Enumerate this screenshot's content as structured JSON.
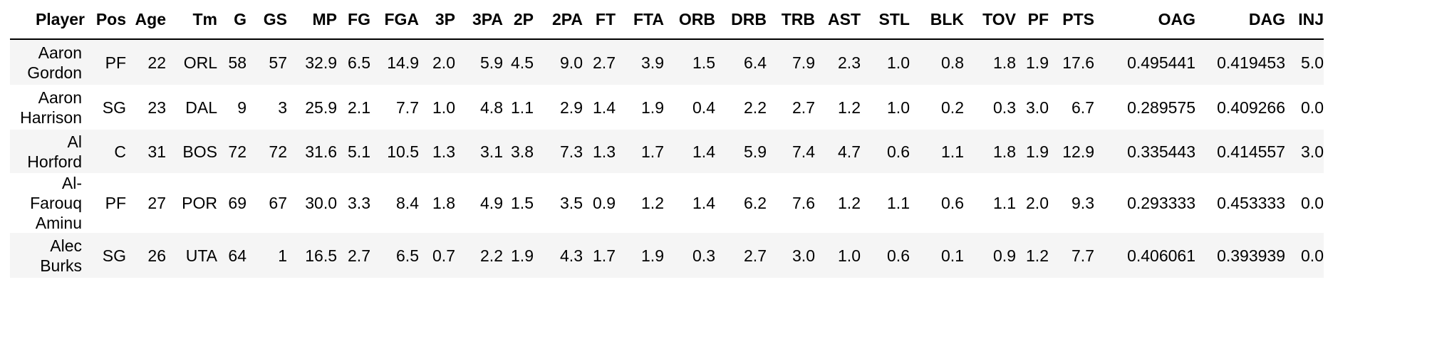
{
  "table": {
    "columns": [
      "Player",
      "Pos",
      "Age",
      "Tm",
      "G",
      "GS",
      "MP",
      "FG",
      "FGA",
      "3P",
      "3PA",
      "2P",
      "2PA",
      "FT",
      "FTA",
      "ORB",
      "DRB",
      "TRB",
      "AST",
      "STL",
      "BLK",
      "TOV",
      "PF",
      "PTS",
      "OAG",
      "DAG",
      "INJ"
    ],
    "rows": [
      {
        "player_lines": [
          "Aaron",
          "Gordon"
        ],
        "values": [
          "PF",
          "22",
          "ORL",
          "58",
          "57",
          "32.9",
          "6.5",
          "14.9",
          "2.0",
          "5.9",
          "4.5",
          "9.0",
          "2.7",
          "3.9",
          "1.5",
          "6.4",
          "7.9",
          "2.3",
          "1.0",
          "0.8",
          "1.8",
          "1.9",
          "17.6",
          "0.495441",
          "0.419453",
          "5.0"
        ]
      },
      {
        "player_lines": [
          "Aaron",
          "Harrison"
        ],
        "values": [
          "SG",
          "23",
          "DAL",
          "9",
          "3",
          "25.9",
          "2.1",
          "7.7",
          "1.0",
          "4.8",
          "1.1",
          "2.9",
          "1.4",
          "1.9",
          "0.4",
          "2.2",
          "2.7",
          "1.2",
          "1.0",
          "0.2",
          "0.3",
          "3.0",
          "6.7",
          "0.289575",
          "0.409266",
          "0.0"
        ]
      },
      {
        "player_lines": [
          "Al",
          "Horford"
        ],
        "values": [
          "C",
          "31",
          "BOS",
          "72",
          "72",
          "31.6",
          "5.1",
          "10.5",
          "1.3",
          "3.1",
          "3.8",
          "7.3",
          "1.3",
          "1.7",
          "1.4",
          "5.9",
          "7.4",
          "4.7",
          "0.6",
          "1.1",
          "1.8",
          "1.9",
          "12.9",
          "0.335443",
          "0.414557",
          "3.0"
        ]
      },
      {
        "player_lines": [
          "Al-",
          "Farouq",
          "Aminu"
        ],
        "values": [
          "PF",
          "27",
          "POR",
          "69",
          "67",
          "30.0",
          "3.3",
          "8.4",
          "1.8",
          "4.9",
          "1.5",
          "3.5",
          "0.9",
          "1.2",
          "1.4",
          "6.2",
          "7.6",
          "1.2",
          "1.1",
          "0.6",
          "1.1",
          "2.0",
          "9.3",
          "0.293333",
          "0.453333",
          "0.0"
        ]
      },
      {
        "player_lines": [
          "Alec",
          "Burks"
        ],
        "values": [
          "SG",
          "26",
          "UTA",
          "64",
          "1",
          "16.5",
          "2.7",
          "6.5",
          "0.7",
          "2.2",
          "1.9",
          "4.3",
          "1.7",
          "1.9",
          "0.3",
          "2.7",
          "3.0",
          "1.0",
          "0.6",
          "0.1",
          "0.9",
          "1.2",
          "7.7",
          "0.406061",
          "0.393939",
          "0.0"
        ]
      }
    ]
  }
}
